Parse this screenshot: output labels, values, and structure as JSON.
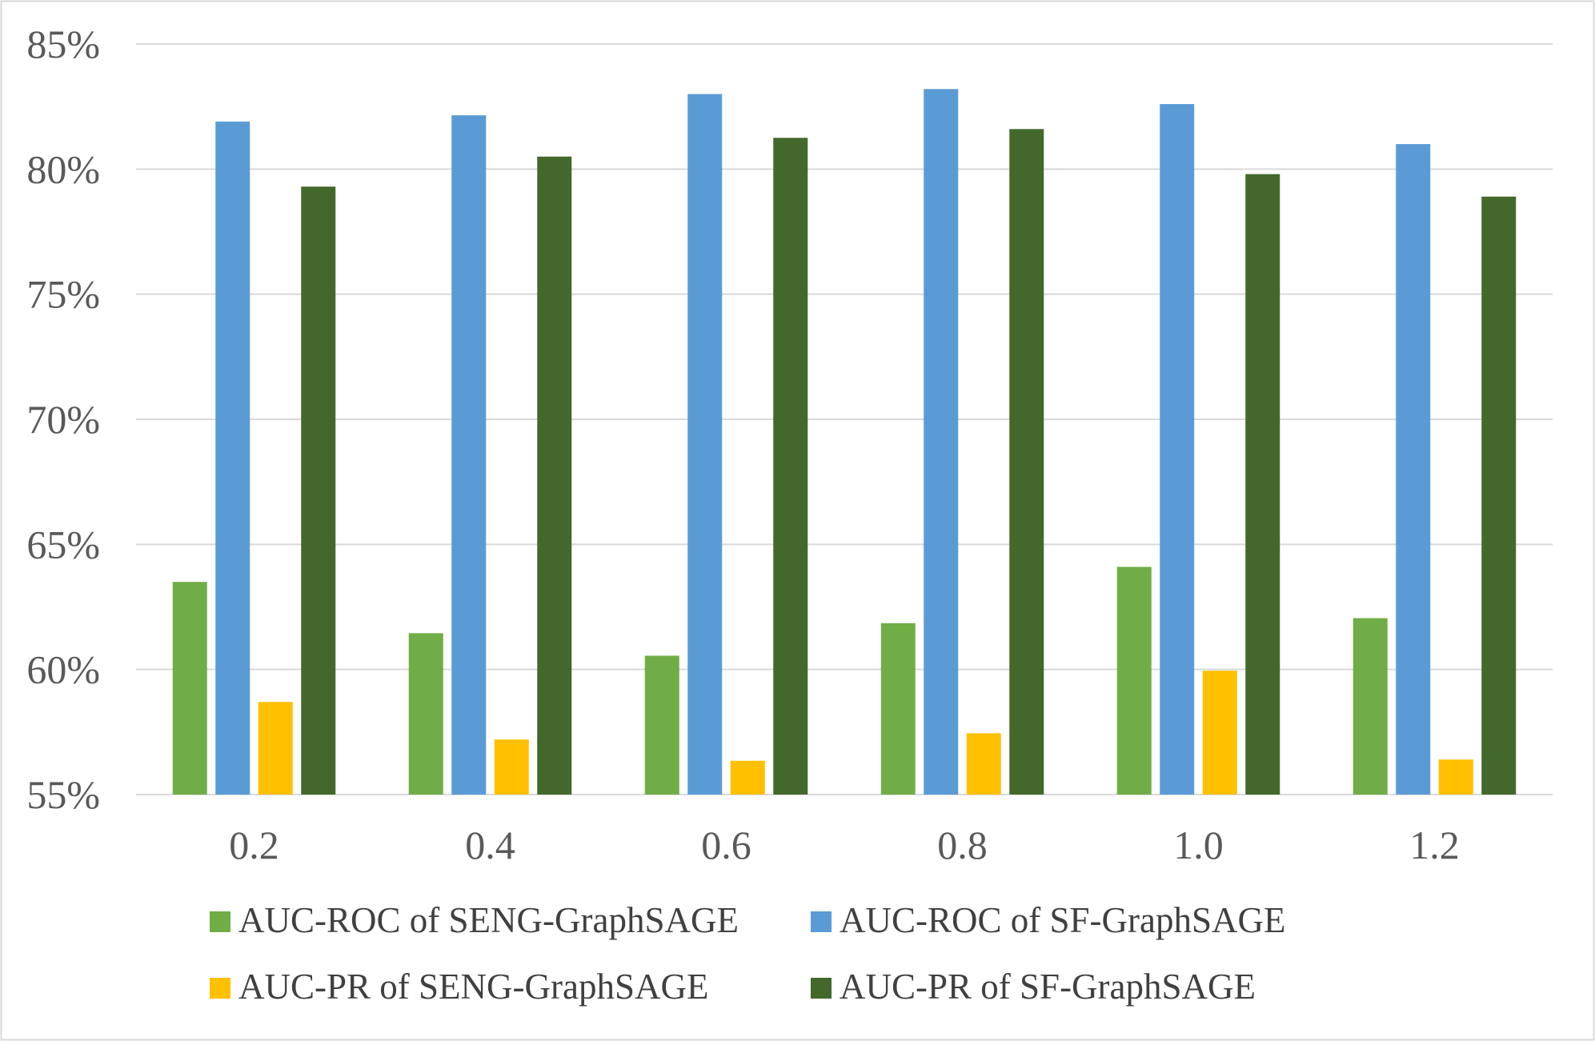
{
  "chart_data": {
    "type": "bar",
    "title": "",
    "xlabel": "",
    "ylabel": "",
    "categories": [
      "0.2",
      "0.4",
      "0.6",
      "0.8",
      "1.0",
      "1.2"
    ],
    "ylim": [
      55,
      85
    ],
    "yticks": [
      55,
      60,
      65,
      70,
      75,
      80,
      85
    ],
    "ytick_labels": [
      "55%",
      "60%",
      "65%",
      "70%",
      "75%",
      "80%",
      "85%"
    ],
    "grid": true,
    "legend_position": "bottom",
    "series": [
      {
        "name": "AUC-ROC of SENG-GraphSAGE",
        "color": "#70AD47",
        "values": [
          63.5,
          61.45,
          60.55,
          61.85,
          64.1,
          62.05
        ]
      },
      {
        "name": "AUC-ROC of SF-GraphSAGE",
        "color": "#5B9BD5",
        "values": [
          81.9,
          82.15,
          83.0,
          83.2,
          82.6,
          81.0
        ]
      },
      {
        "name": "AUC-PR of SENG-GraphSAGE",
        "color": "#FFC000",
        "values": [
          58.7,
          57.2,
          56.35,
          57.45,
          59.95,
          56.4
        ]
      },
      {
        "name": "AUC-PR of SF-GraphSAGE",
        "color": "#43682B",
        "values": [
          79.3,
          80.5,
          81.25,
          81.6,
          79.8,
          78.9
        ]
      }
    ]
  }
}
